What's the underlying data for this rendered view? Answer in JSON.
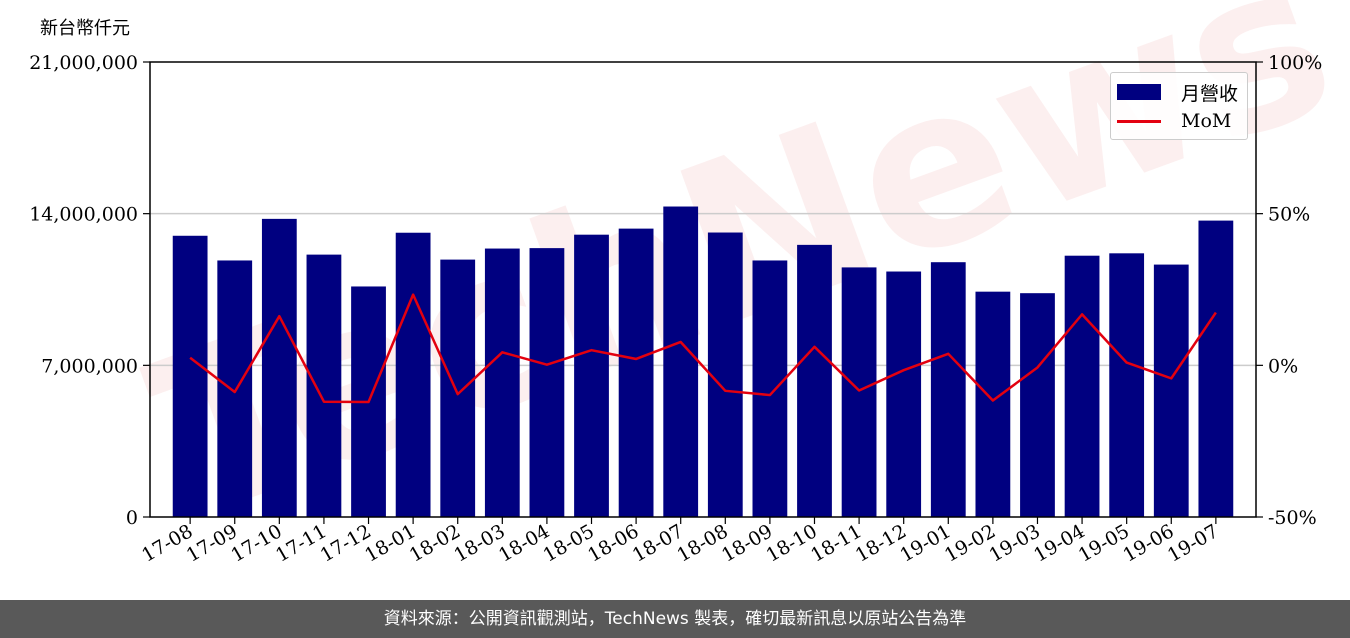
{
  "unit_label": "新台幣仟元",
  "footer": "資料來源：公開資訊觀測站，TechNews 製表，確切最新訊息以原站公告為準",
  "colors": {
    "bar": "#000080",
    "line": "#e3000f",
    "footer_bg": "#595959"
  },
  "chart_data": {
    "type": "bar",
    "categories": [
      "17-08",
      "17-09",
      "17-10",
      "17-11",
      "17-12",
      "18-01",
      "18-02",
      "18-03",
      "18-04",
      "18-05",
      "18-06",
      "18-07",
      "18-08",
      "18-09",
      "18-10",
      "18-11",
      "18-12",
      "19-01",
      "19-02",
      "19-03",
      "19-04",
      "19-05",
      "19-06",
      "19-07"
    ],
    "series": [
      {
        "name": "月營收",
        "type": "bar",
        "axis": "left",
        "values": [
          12980000,
          11840000,
          13760000,
          12110000,
          10640000,
          13120000,
          11880000,
          12390000,
          12410000,
          13030000,
          13310000,
          14330000,
          13130000,
          11840000,
          12560000,
          11520000,
          11330000,
          11760000,
          10400000,
          10330000,
          12060000,
          12170000,
          11650000,
          13680000
        ]
      },
      {
        "name": "MoM",
        "type": "line",
        "axis": "right",
        "values": [
          2.5,
          -8.8,
          16.2,
          -12.0,
          -12.1,
          23.3,
          -9.5,
          4.3,
          0.2,
          5.0,
          2.1,
          7.7,
          -8.4,
          -9.8,
          6.1,
          -8.3,
          -1.6,
          3.8,
          -11.6,
          -0.7,
          16.8,
          0.9,
          -4.3,
          17.4
        ]
      }
    ],
    "y_left": {
      "range": [
        0,
        21000000
      ],
      "ticks": [
        "0",
        "7,000,000",
        "14,000,000",
        "21,000,000"
      ]
    },
    "y_right": {
      "range": [
        -50,
        100
      ],
      "ticks": [
        "-50%",
        "0%",
        "50%",
        "100%"
      ]
    },
    "grid": true,
    "legend_position": "top-right"
  }
}
